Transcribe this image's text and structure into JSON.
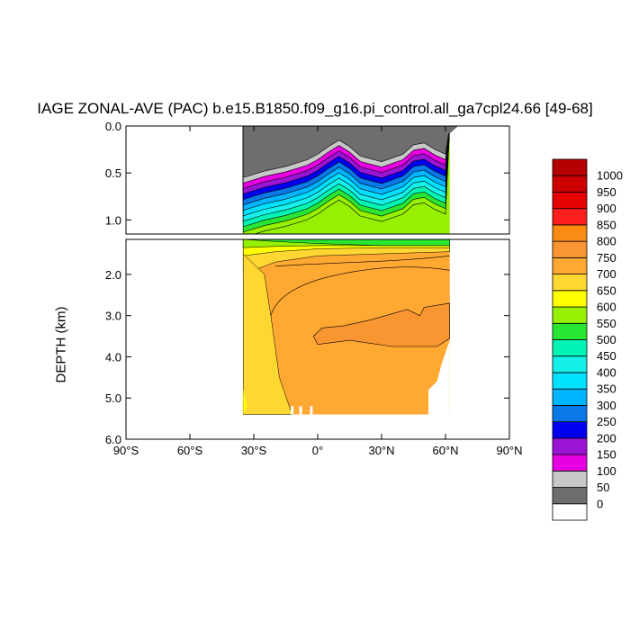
{
  "chart_data": {
    "type": "heatmap",
    "title": "IAGE ZONAL-AVE (PAC) b.e15.B1850.f09_g16.pi_control.all_ga7cpl24.66 [49-68]",
    "ylabel": "DEPTH (km)",
    "xlabel": "",
    "x_ticks": [
      "90°S",
      "60°S",
      "30°S",
      "0°",
      "30°N",
      "60°N",
      "90°N"
    ],
    "x_tick_values": [
      -90,
      -60,
      -30,
      0,
      30,
      60,
      90
    ],
    "xlim": [
      -90,
      90
    ],
    "upper_panel": {
      "ylim": [
        0.0,
        1.15
      ],
      "y_ticks": [
        "0.0",
        "0.5",
        "1.0"
      ],
      "y_tick_values": [
        0.0,
        0.5,
        1.0
      ],
      "surface_profile": {
        "lat": [
          -35,
          -25,
          -15,
          -5,
          0,
          5,
          10,
          15,
          20,
          30,
          40,
          45,
          50,
          55,
          60
        ],
        "depth": [
          0.55,
          0.48,
          0.43,
          0.36,
          0.3,
          0.22,
          0.15,
          0.22,
          0.32,
          0.38,
          0.3,
          0.2,
          0.18,
          0.25,
          0.3
        ]
      },
      "contour_spacing_km": 0.058
    },
    "lower_panel": {
      "ylim": [
        1.15,
        6.0
      ],
      "y_ticks": [
        "2.0",
        "3.0",
        "4.0",
        "5.0",
        "6.0"
      ],
      "y_tick_values": [
        2.0,
        3.0,
        4.0,
        5.0,
        6.0
      ]
    },
    "data_extent": {
      "lat_min": -35,
      "lat_max": 62,
      "bottom_depth_km": 5.4
    },
    "colorbar": {
      "labels": [
        "0",
        "50",
        "100",
        "150",
        "200",
        "250",
        "300",
        "350",
        "400",
        "450",
        "500",
        "550",
        "600",
        "650",
        "700",
        "750",
        "800",
        "850",
        "900",
        "950",
        "1000"
      ],
      "colors": [
        "#ffffff",
        "#6e6e6e",
        "#c8c8c8",
        "#e600e0",
        "#9a14d6",
        "#0000f0",
        "#0a78e6",
        "#00b4ff",
        "#00e0ff",
        "#14f0ea",
        "#00f5b4",
        "#28e632",
        "#96f000",
        "#ffff00",
        "#ffd732",
        "#ffa832",
        "#fa9632",
        "#fa8c14",
        "#ff1e1e",
        "#e60000",
        "#cd0000",
        "#b40000"
      ]
    }
  }
}
